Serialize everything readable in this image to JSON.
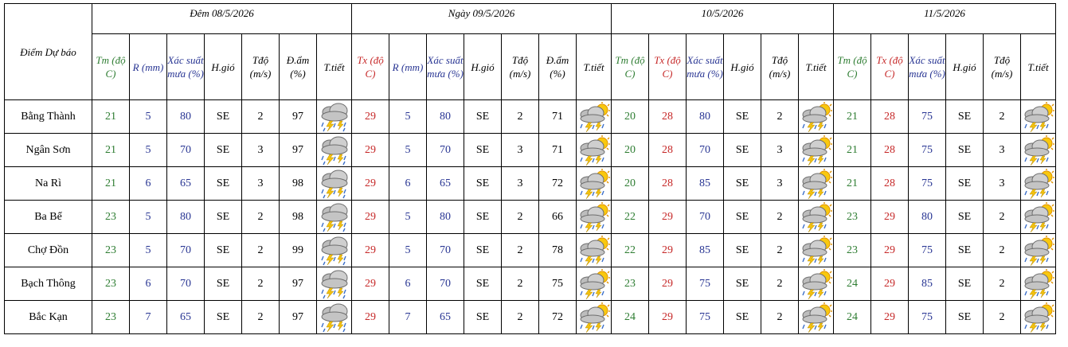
{
  "header": {
    "location_col": "Điểm Dự báo",
    "sections": [
      {
        "title": "Đêm 08/5/2026",
        "cols": [
          {
            "label": "Tm (độ C)",
            "tone": "green"
          },
          {
            "label": "R (mm)",
            "tone": "navy"
          },
          {
            "label": "Xác suất mưa (%)",
            "tone": "navy"
          },
          {
            "label": "H.gió",
            "tone": "black"
          },
          {
            "label": "Tđộ (m/s)",
            "tone": "black"
          },
          {
            "label": "Đ.ẩm (%)",
            "tone": "black"
          },
          {
            "label": "T.tiết",
            "tone": "black"
          }
        ]
      },
      {
        "title": "Ngày 09/5/2026",
        "cols": [
          {
            "label": "Tx (độ C)",
            "tone": "red"
          },
          {
            "label": "R (mm)",
            "tone": "navy"
          },
          {
            "label": "Xác suất mưa (%)",
            "tone": "navy"
          },
          {
            "label": "H.gió",
            "tone": "black"
          },
          {
            "label": "Tđộ (m/s)",
            "tone": "black"
          },
          {
            "label": "Đ.ẩm (%)",
            "tone": "black"
          },
          {
            "label": "T.tiết",
            "tone": "black"
          }
        ]
      },
      {
        "title": "10/5/2026",
        "cols": [
          {
            "label": "Tm (độ C)",
            "tone": "green"
          },
          {
            "label": "Tx (độ C)",
            "tone": "red"
          },
          {
            "label": "Xác suất mưa (%)",
            "tone": "navy"
          },
          {
            "label": "H.gió",
            "tone": "black"
          },
          {
            "label": "Tđộ (m/s)",
            "tone": "black"
          },
          {
            "label": "T.tiết",
            "tone": "black"
          }
        ]
      },
      {
        "title": "11/5/2026",
        "cols": [
          {
            "label": "Tm (độ C)",
            "tone": "green"
          },
          {
            "label": "Tx (độ C)",
            "tone": "red"
          },
          {
            "label": "Xác suất mưa (%)",
            "tone": "navy"
          },
          {
            "label": "H.gió",
            "tone": "black"
          },
          {
            "label": "Tđộ (m/s)",
            "tone": "black"
          },
          {
            "label": "T.tiết",
            "tone": "black"
          }
        ]
      }
    ]
  },
  "colors": {
    "green": "#2e7d32",
    "red": "#c62828",
    "navy": "#283593",
    "black": "#000000"
  },
  "rows": [
    {
      "location": "Bằng Thành",
      "d1": {
        "tm": "21",
        "r": "5",
        "p": "80",
        "wind": "SE",
        "speed": "2",
        "hum": "97",
        "icon": "thunderstorm-rain-icon"
      },
      "d2": {
        "tx": "29",
        "r": "5",
        "p": "80",
        "wind": "SE",
        "speed": "2",
        "hum": "71",
        "icon": "sun-cloud-thunderstorm-icon"
      },
      "d3": {
        "tm": "20",
        "tx": "28",
        "p": "80",
        "wind": "SE",
        "speed": "2",
        "icon": "sun-cloud-thunderstorm-icon"
      },
      "d4": {
        "tm": "21",
        "tx": "28",
        "p": "75",
        "wind": "SE",
        "speed": "2",
        "icon": "sun-cloud-thunderstorm-icon"
      }
    },
    {
      "location": "Ngân Sơn",
      "d1": {
        "tm": "21",
        "r": "5",
        "p": "70",
        "wind": "SE",
        "speed": "3",
        "hum": "97",
        "icon": "thunderstorm-rain-icon"
      },
      "d2": {
        "tx": "29",
        "r": "5",
        "p": "70",
        "wind": "SE",
        "speed": "3",
        "hum": "71",
        "icon": "sun-cloud-thunderstorm-icon"
      },
      "d3": {
        "tm": "20",
        "tx": "28",
        "p": "70",
        "wind": "SE",
        "speed": "3",
        "icon": "sun-cloud-thunderstorm-icon"
      },
      "d4": {
        "tm": "21",
        "tx": "28",
        "p": "75",
        "wind": "SE",
        "speed": "3",
        "icon": "sun-cloud-thunderstorm-icon"
      }
    },
    {
      "location": "Na Rì",
      "d1": {
        "tm": "21",
        "r": "6",
        "p": "65",
        "wind": "SE",
        "speed": "3",
        "hum": "98",
        "icon": "thunderstorm-rain-icon"
      },
      "d2": {
        "tx": "29",
        "r": "6",
        "p": "65",
        "wind": "SE",
        "speed": "3",
        "hum": "72",
        "icon": "sun-cloud-thunderstorm-icon"
      },
      "d3": {
        "tm": "20",
        "tx": "28",
        "p": "85",
        "wind": "SE",
        "speed": "3",
        "icon": "sun-cloud-thunderstorm-icon"
      },
      "d4": {
        "tm": "21",
        "tx": "28",
        "p": "75",
        "wind": "SE",
        "speed": "3",
        "icon": "sun-cloud-thunderstorm-icon"
      }
    },
    {
      "location": "Ba Bể",
      "d1": {
        "tm": "23",
        "r": "5",
        "p": "80",
        "wind": "SE",
        "speed": "2",
        "hum": "98",
        "icon": "thunderstorm-rain-icon"
      },
      "d2": {
        "tx": "29",
        "r": "5",
        "p": "80",
        "wind": "SE",
        "speed": "2",
        "hum": "66",
        "icon": "sun-cloud-thunderstorm-icon"
      },
      "d3": {
        "tm": "22",
        "tx": "29",
        "p": "70",
        "wind": "SE",
        "speed": "2",
        "icon": "sun-cloud-thunderstorm-icon"
      },
      "d4": {
        "tm": "23",
        "tx": "29",
        "p": "80",
        "wind": "SE",
        "speed": "2",
        "icon": "sun-cloud-thunderstorm-icon"
      }
    },
    {
      "location": "Chợ Đồn",
      "d1": {
        "tm": "23",
        "r": "5",
        "p": "70",
        "wind": "SE",
        "speed": "2",
        "hum": "99",
        "icon": "thunderstorm-rain-icon"
      },
      "d2": {
        "tx": "29",
        "r": "5",
        "p": "70",
        "wind": "SE",
        "speed": "2",
        "hum": "78",
        "icon": "sun-cloud-thunderstorm-icon"
      },
      "d3": {
        "tm": "22",
        "tx": "29",
        "p": "85",
        "wind": "SE",
        "speed": "2",
        "icon": "sun-cloud-thunderstorm-icon"
      },
      "d4": {
        "tm": "23",
        "tx": "29",
        "p": "75",
        "wind": "SE",
        "speed": "2",
        "icon": "sun-cloud-thunderstorm-icon"
      }
    },
    {
      "location": "Bạch Thông",
      "d1": {
        "tm": "23",
        "r": "6",
        "p": "70",
        "wind": "SE",
        "speed": "2",
        "hum": "97",
        "icon": "thunderstorm-rain-icon"
      },
      "d2": {
        "tx": "29",
        "r": "6",
        "p": "70",
        "wind": "SE",
        "speed": "2",
        "hum": "75",
        "icon": "sun-cloud-thunderstorm-icon"
      },
      "d3": {
        "tm": "23",
        "tx": "29",
        "p": "75",
        "wind": "SE",
        "speed": "2",
        "icon": "sun-cloud-thunderstorm-icon"
      },
      "d4": {
        "tm": "24",
        "tx": "29",
        "p": "85",
        "wind": "SE",
        "speed": "2",
        "icon": "sun-cloud-thunderstorm-icon"
      }
    },
    {
      "location": "Bắc Kạn",
      "d1": {
        "tm": "23",
        "r": "7",
        "p": "65",
        "wind": "SE",
        "speed": "2",
        "hum": "97",
        "icon": "thunderstorm-rain-icon"
      },
      "d2": {
        "tx": "29",
        "r": "7",
        "p": "65",
        "wind": "SE",
        "speed": "2",
        "hum": "72",
        "icon": "sun-cloud-thunderstorm-icon"
      },
      "d3": {
        "tm": "24",
        "tx": "29",
        "p": "75",
        "wind": "SE",
        "speed": "2",
        "icon": "sun-cloud-thunderstorm-icon"
      },
      "d4": {
        "tm": "24",
        "tx": "29",
        "p": "75",
        "wind": "SE",
        "speed": "2",
        "icon": "sun-cloud-thunderstorm-icon"
      }
    }
  ]
}
